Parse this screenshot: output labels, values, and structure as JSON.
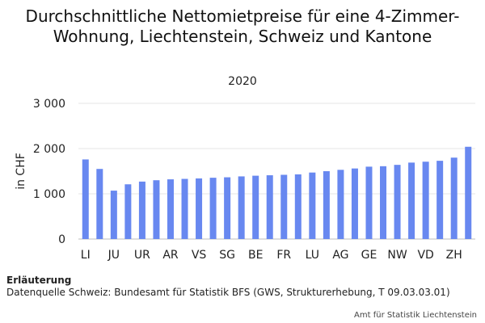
{
  "chart_data": {
    "type": "bar",
    "title": "Durchschnittliche Nettomietpreise für eine 4-Zimmer-Wohnung, Liechtenstein, Schweiz und Kantone",
    "subtitle": "2020",
    "ylabel": "in CHF",
    "xlabel": "",
    "ylim": [
      0,
      3000
    ],
    "yticks": [
      0,
      1000,
      2000,
      3000
    ],
    "ytick_labels": [
      "0",
      "1 000",
      "2 000",
      "3 000"
    ],
    "categories": [
      "LI",
      "",
      "JU",
      "",
      "UR",
      "",
      "AR",
      "",
      "VS",
      "",
      "SG",
      "",
      "BE",
      "",
      "FR",
      "",
      "LU",
      "",
      "AG",
      "",
      "GE",
      "",
      "NW",
      "",
      "VD",
      "",
      "ZH",
      ""
    ],
    "values": [
      1760,
      1550,
      1070,
      1210,
      1270,
      1300,
      1320,
      1330,
      1340,
      1355,
      1365,
      1385,
      1400,
      1410,
      1420,
      1430,
      1470,
      1500,
      1530,
      1560,
      1600,
      1610,
      1640,
      1690,
      1710,
      1730,
      1800,
      2040
    ],
    "bar_color": "#6888f0",
    "grid": true,
    "legend": "none"
  },
  "notes": {
    "heading": "Erläuterung",
    "source": "Datenquelle Schweiz: Bundesamt für Statistik BFS (GWS, Strukturerhebung, T 09.03.03.01)"
  },
  "footer": {
    "credit": "Amt für Statistik Liechtenstein"
  }
}
